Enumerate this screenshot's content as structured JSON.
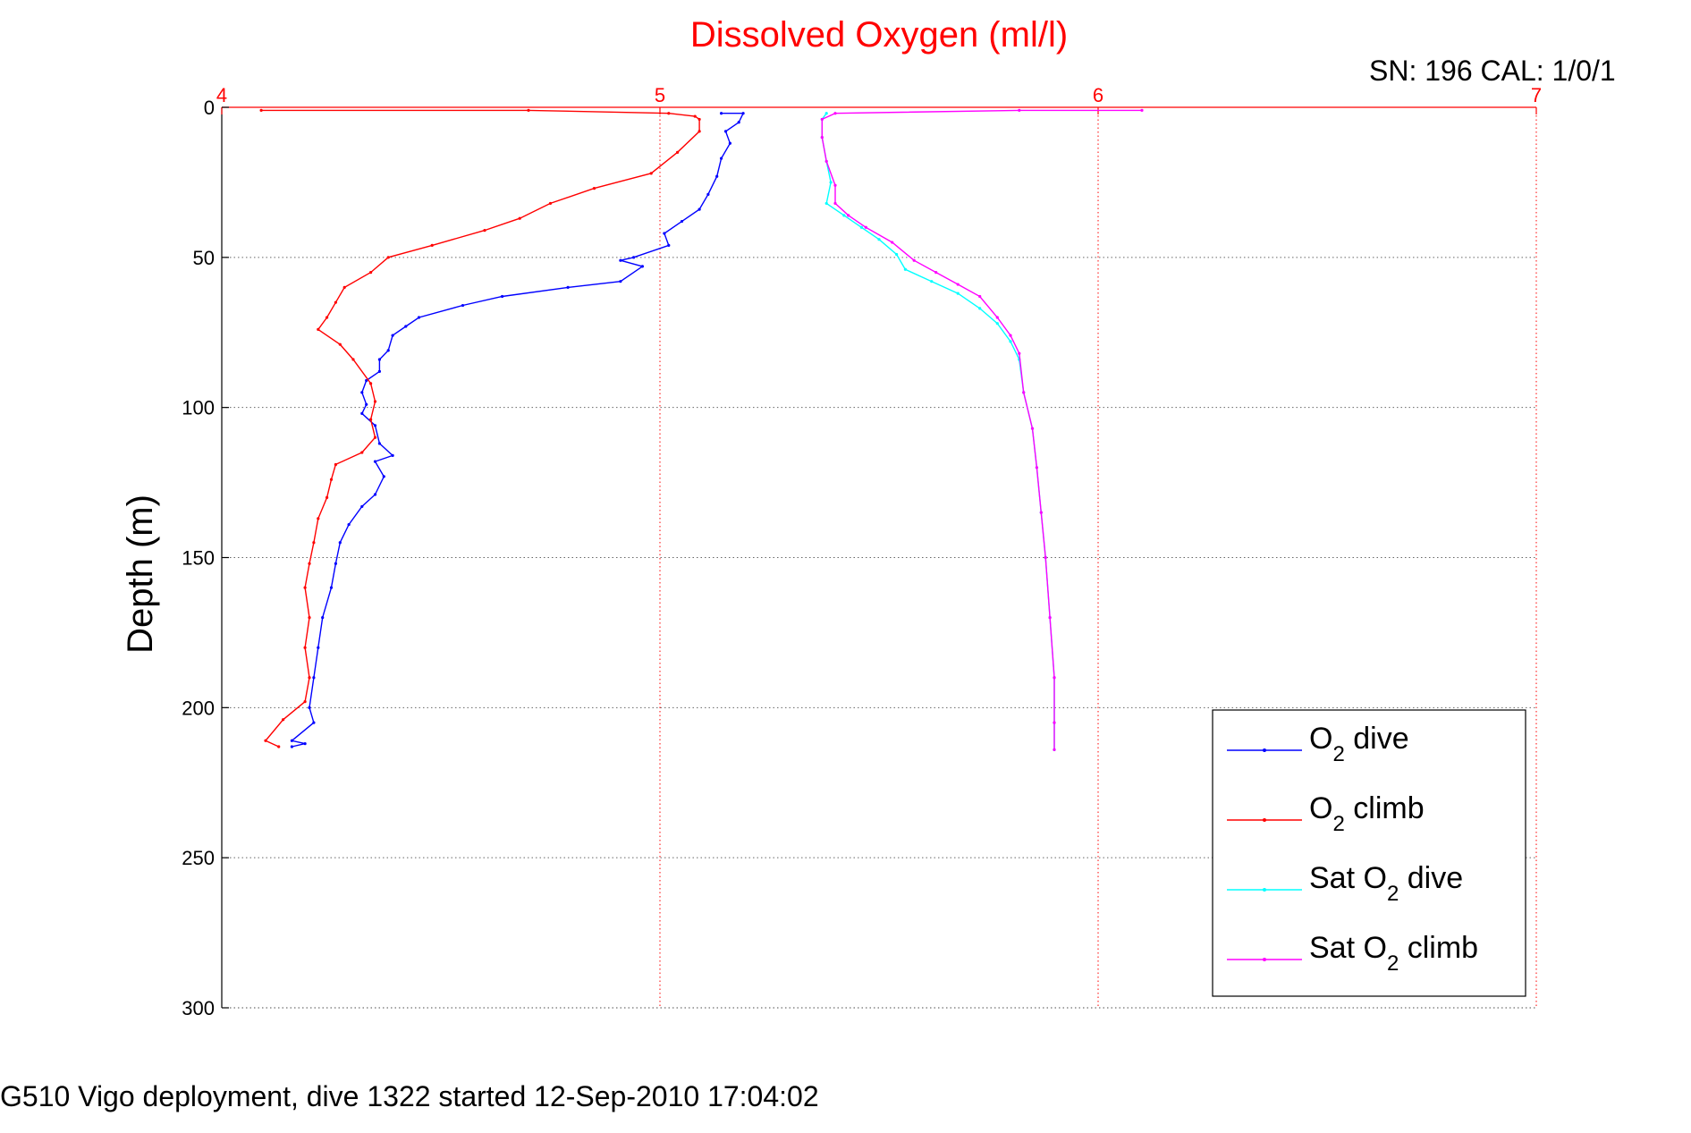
{
  "chart_data": {
    "type": "line",
    "title": "Dissolved Oxygen (ml/l)",
    "serial_label": "SN: 196  CAL: 1/0/1",
    "ylabel": "Depth (m)",
    "footer": "G510 Vigo deployment, dive 1322 started 12-Sep-2010 17:04:02",
    "xlim": [
      4,
      7
    ],
    "ylim": [
      0,
      300
    ],
    "y_reversed": true,
    "x_ticks": [
      4,
      5,
      6,
      7
    ],
    "y_ticks": [
      0,
      50,
      100,
      150,
      200,
      250,
      300
    ],
    "grid": true,
    "legend_position": "bottom-right",
    "colors": {
      "axis_top": "#ff0000",
      "axis_left": "#000000",
      "title": "#ff0000"
    },
    "series": [
      {
        "name": "dive",
        "legend_prefix": "O",
        "legend_sub": "2",
        "legend_suffix": " dive",
        "color": "#0000ff",
        "points": [
          [
            5.14,
            2
          ],
          [
            5.19,
            2
          ],
          [
            5.18,
            5
          ],
          [
            5.15,
            8
          ],
          [
            5.16,
            12
          ],
          [
            5.14,
            17
          ],
          [
            5.13,
            23
          ],
          [
            5.11,
            29
          ],
          [
            5.09,
            34
          ],
          [
            5.05,
            38
          ],
          [
            5.01,
            42
          ],
          [
            5.02,
            46
          ],
          [
            4.94,
            50
          ],
          [
            4.91,
            51
          ],
          [
            4.96,
            53
          ],
          [
            4.91,
            58
          ],
          [
            4.79,
            60
          ],
          [
            4.64,
            63
          ],
          [
            4.55,
            66
          ],
          [
            4.45,
            70
          ],
          [
            4.42,
            73
          ],
          [
            4.39,
            76
          ],
          [
            4.38,
            81
          ],
          [
            4.36,
            84
          ],
          [
            4.36,
            88
          ],
          [
            4.33,
            91
          ],
          [
            4.32,
            95
          ],
          [
            4.33,
            99
          ],
          [
            4.32,
            102
          ],
          [
            4.35,
            106
          ],
          [
            4.36,
            112
          ],
          [
            4.39,
            116
          ],
          [
            4.35,
            118
          ],
          [
            4.37,
            123
          ],
          [
            4.35,
            129
          ],
          [
            4.32,
            133
          ],
          [
            4.29,
            139
          ],
          [
            4.27,
            145
          ],
          [
            4.26,
            152
          ],
          [
            4.25,
            160
          ],
          [
            4.23,
            170
          ],
          [
            4.22,
            180
          ],
          [
            4.21,
            190
          ],
          [
            4.2,
            200
          ],
          [
            4.21,
            205
          ],
          [
            4.16,
            211
          ],
          [
            4.19,
            212
          ],
          [
            4.16,
            213
          ]
        ]
      },
      {
        "name": "climb",
        "legend_prefix": "O",
        "legend_sub": "2",
        "legend_suffix": " climb",
        "color": "#ff0000",
        "points": [
          [
            4.09,
            1
          ],
          [
            4.7,
            1
          ],
          [
            5.02,
            2
          ],
          [
            5.08,
            3
          ],
          [
            5.09,
            4
          ],
          [
            5.09,
            8
          ],
          [
            5.04,
            15
          ],
          [
            4.98,
            22
          ],
          [
            4.85,
            27
          ],
          [
            4.75,
            32
          ],
          [
            4.68,
            37
          ],
          [
            4.6,
            41
          ],
          [
            4.48,
            46
          ],
          [
            4.38,
            50
          ],
          [
            4.34,
            55
          ],
          [
            4.28,
            60
          ],
          [
            4.26,
            65
          ],
          [
            4.24,
            70
          ],
          [
            4.22,
            74
          ],
          [
            4.27,
            79
          ],
          [
            4.3,
            84
          ],
          [
            4.34,
            92
          ],
          [
            4.35,
            98
          ],
          [
            4.34,
            104
          ],
          [
            4.35,
            110
          ],
          [
            4.32,
            115
          ],
          [
            4.26,
            119
          ],
          [
            4.25,
            124
          ],
          [
            4.24,
            130
          ],
          [
            4.22,
            137
          ],
          [
            4.21,
            145
          ],
          [
            4.2,
            152
          ],
          [
            4.19,
            160
          ],
          [
            4.2,
            170
          ],
          [
            4.19,
            180
          ],
          [
            4.2,
            190
          ],
          [
            4.19,
            198
          ],
          [
            4.14,
            204
          ],
          [
            4.1,
            211
          ],
          [
            4.13,
            213
          ]
        ]
      },
      {
        "name": "dive_sat",
        "legend_prefix": "Sat O",
        "legend_sub": "2",
        "legend_suffix": " dive",
        "color": "#00ffff",
        "points": [
          [
            5.38,
            2
          ],
          [
            5.37,
            4
          ],
          [
            5.37,
            10
          ],
          [
            5.38,
            18
          ],
          [
            5.39,
            25
          ],
          [
            5.38,
            32
          ],
          [
            5.42,
            36
          ],
          [
            5.46,
            40
          ],
          [
            5.5,
            44
          ],
          [
            5.54,
            49
          ],
          [
            5.56,
            54
          ],
          [
            5.62,
            58
          ],
          [
            5.68,
            62
          ],
          [
            5.73,
            67
          ],
          [
            5.77,
            72
          ],
          [
            5.8,
            78
          ],
          [
            5.82,
            84
          ],
          [
            5.83,
            95
          ],
          [
            5.85,
            107
          ],
          [
            5.86,
            120
          ],
          [
            5.87,
            135
          ],
          [
            5.88,
            150
          ],
          [
            5.89,
            170
          ],
          [
            5.9,
            190
          ],
          [
            5.9,
            205
          ],
          [
            5.9,
            214
          ]
        ]
      },
      {
        "name": "climb_sat",
        "legend_prefix": "Sat O",
        "legend_sub": "2",
        "legend_suffix": " climb",
        "color": "#ff00ff",
        "points": [
          [
            6.1,
            1
          ],
          [
            5.82,
            1
          ],
          [
            5.4,
            2
          ],
          [
            5.37,
            4
          ],
          [
            5.37,
            10
          ],
          [
            5.38,
            18
          ],
          [
            5.4,
            26
          ],
          [
            5.4,
            32
          ],
          [
            5.43,
            36
          ],
          [
            5.47,
            40
          ],
          [
            5.53,
            45
          ],
          [
            5.58,
            51
          ],
          [
            5.63,
            55
          ],
          [
            5.68,
            59
          ],
          [
            5.73,
            63
          ],
          [
            5.77,
            70
          ],
          [
            5.8,
            76
          ],
          [
            5.82,
            82
          ],
          [
            5.83,
            95
          ],
          [
            5.85,
            107
          ],
          [
            5.86,
            120
          ],
          [
            5.87,
            135
          ],
          [
            5.88,
            150
          ],
          [
            5.89,
            170
          ],
          [
            5.9,
            190
          ],
          [
            5.9,
            205
          ],
          [
            5.9,
            214
          ]
        ]
      }
    ]
  }
}
